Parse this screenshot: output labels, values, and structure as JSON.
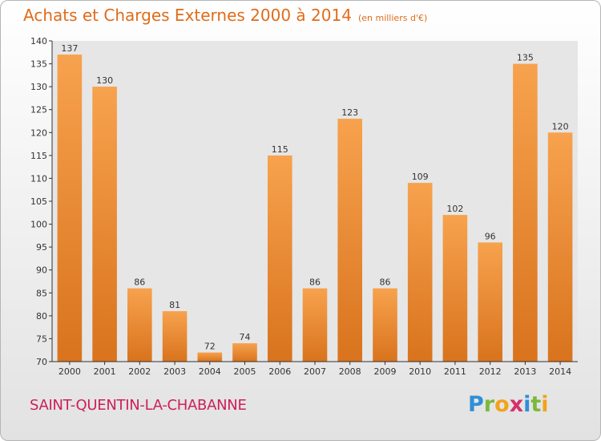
{
  "header": {
    "title": "Achats et Charges Externes 2000 à 2014",
    "subtitle": "(en milliers d'€)"
  },
  "footer": {
    "commune": "SAINT-QUENTIN-LA-CHABANNE",
    "brand": "Proxiti",
    "brand_letters": [
      {
        "ch": "P",
        "color": "#2e8fd6"
      },
      {
        "ch": "r",
        "color": "#7cb83a"
      },
      {
        "ch": "o",
        "color": "#f3a21c"
      },
      {
        "ch": "x",
        "color": "#d62f6a"
      },
      {
        "ch": "i",
        "color": "#2e8fd6"
      },
      {
        "ch": "t",
        "color": "#7cb83a"
      },
      {
        "ch": "i",
        "color": "#f3a21c"
      }
    ]
  },
  "colors": {
    "bar_light": "#f7a24e",
    "bar_dark": "#d9731d",
    "axis": "#333333",
    "plot_bg": "#e6e6e6"
  },
  "chart_data": {
    "type": "bar",
    "title": "Achats et Charges Externes 2000 à 2014",
    "subtitle": "(en milliers d'€)",
    "categories": [
      "2000",
      "2001",
      "2002",
      "2003",
      "2004",
      "2005",
      "2006",
      "2007",
      "2008",
      "2009",
      "2010",
      "2011",
      "2012",
      "2013",
      "2014"
    ],
    "values": [
      137,
      130,
      86,
      81,
      72,
      74,
      115,
      86,
      123,
      86,
      109,
      102,
      96,
      135,
      120
    ],
    "ylim": [
      70,
      140
    ],
    "yticks": [
      70,
      75,
      80,
      85,
      90,
      95,
      100,
      105,
      110,
      115,
      120,
      125,
      130,
      135,
      140
    ],
    "grid": false,
    "xlabel": "",
    "ylabel": ""
  }
}
